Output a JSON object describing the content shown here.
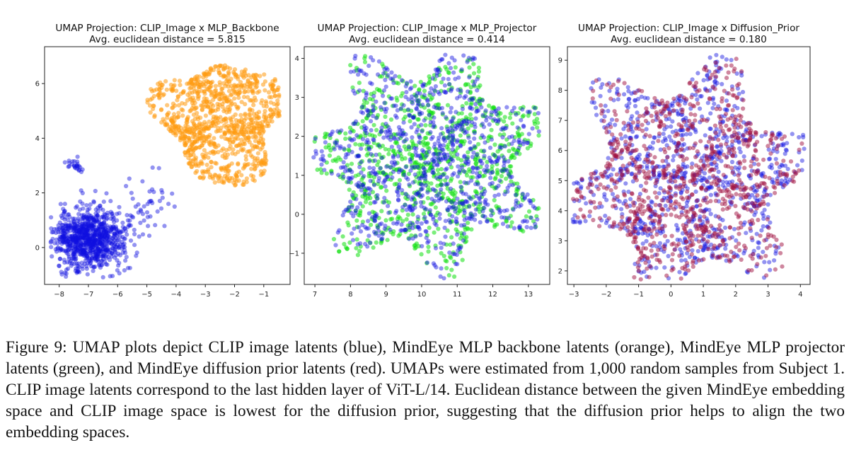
{
  "figure": {
    "caption": "Figure 9: UMAP plots depict CLIP image latents (blue), MindEye MLP backbone latents (orange), MindEye MLP projector latents (green), and MindEye diffusion prior latents (red). UMAPs were estimated from 1,000 random samples from Subject 1. CLIP image latents correspond to the last hidden layer of ViT-L/14. Euclidean distance between the given MindEye embedding space and CLIP image space is lowest for the diffusion prior, suggesting that the diffusion prior helps to align the two embedding spaces."
  },
  "colors": {
    "clip": "#1010e0",
    "backbone": "#ff9a10",
    "projector": "#10e010",
    "prior": "#a01040"
  },
  "chart_data": [
    {
      "type": "scatter",
      "title": "UMAP Projection: CLIP_Image x MLP_Backbone",
      "subtitle": "Avg. euclidean distance = 5.815",
      "xlabel": "",
      "ylabel": "",
      "xlim": [
        -8.5,
        -0.1
      ],
      "ylim": [
        -1.35,
        7.35
      ],
      "xticks": [
        -8,
        -7,
        -6,
        -5,
        -4,
        -3,
        -2,
        -1
      ],
      "yticks": [
        0,
        2,
        4,
        6
      ],
      "series": [
        {
          "name": "CLIP image latents",
          "color": "blue",
          "note": "blob centred near (-7, 0.5), spread x -8.2 to -4.8, y -1.0 to 3.2"
        },
        {
          "name": "MindEye MLP backbone latents",
          "color": "orange",
          "note": "blob centred near (-2.4, 4.6), spread x -4.8 to -0.6, y 2.0 to 7.0"
        }
      ]
    },
    {
      "type": "scatter",
      "title": "UMAP Projection: CLIP_Image x MLP_Projector",
      "subtitle": "Avg. euclidean distance = 0.414",
      "xlabel": "",
      "ylabel": "",
      "xlim": [
        6.7,
        13.6
      ],
      "ylim": [
        -1.8,
        4.3
      ],
      "xticks": [
        7,
        8,
        9,
        10,
        11,
        12,
        13
      ],
      "yticks": [
        -1,
        0,
        1,
        2,
        3,
        4
      ],
      "series": [
        {
          "name": "CLIP image latents",
          "color": "blue",
          "note": "star-shaped cloud centred near (10.2, 1.4), spread x 7.0 to 13.2, y -1.6 to 4.0"
        },
        {
          "name": "MindEye MLP projector latents",
          "color": "green",
          "note": "overlapping star-shaped cloud centred near (10.2, 1.4)"
        }
      ]
    },
    {
      "type": "scatter",
      "title": "UMAP Projection: CLIP_Image x Diffusion_Prior",
      "subtitle": "Avg. euclidean distance = 0.180",
      "xlabel": "",
      "ylabel": "",
      "xlim": [
        -3.2,
        4.3
      ],
      "ylim": [
        1.55,
        9.45
      ],
      "xticks": [
        -3,
        -2,
        -1,
        0,
        1,
        2,
        3,
        4
      ],
      "yticks": [
        2,
        3,
        4,
        5,
        6,
        7,
        8,
        9
      ],
      "series": [
        {
          "name": "CLIP image latents",
          "color": "blue",
          "note": "star-shaped cloud centred near (0.6, 5.0), spread x -3.0 to 4.0, y 1.8 to 9.2"
        },
        {
          "name": "MindEye diffusion prior latents",
          "color": "red",
          "note": "overlapping cloud, blue and red blend to purple"
        }
      ]
    }
  ]
}
